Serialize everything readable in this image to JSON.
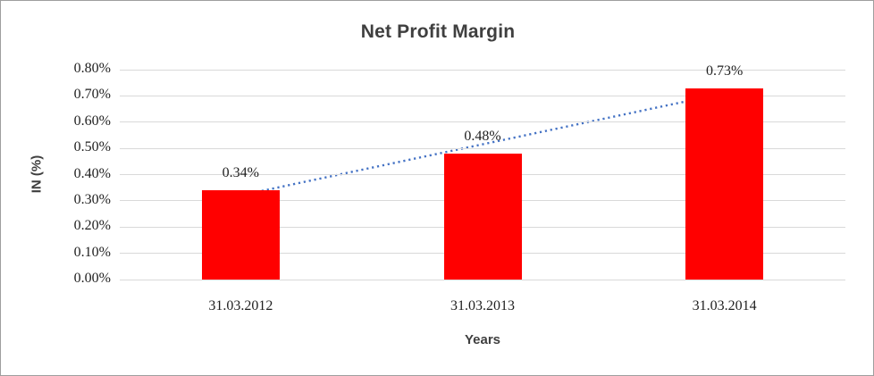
{
  "chart_data": {
    "type": "bar",
    "title": "Net Profit Margin",
    "xlabel": "Years",
    "ylabel": "IN (%)",
    "categories": [
      "31.03.2012",
      "31.03.2013",
      "31.03.2014"
    ],
    "values": [
      0.34,
      0.48,
      0.73
    ],
    "data_labels": [
      "0.34%",
      "0.48%",
      "0.73%"
    ],
    "ylim": [
      0,
      0.8
    ],
    "ytick_interval": 0.1,
    "yticks": [
      {
        "value": 0.0,
        "label": "0.00%"
      },
      {
        "value": 0.1,
        "label": "0.10%"
      },
      {
        "value": 0.2,
        "label": "0.20%"
      },
      {
        "value": 0.3,
        "label": "0.30%"
      },
      {
        "value": 0.4,
        "label": "0.40%"
      },
      {
        "value": 0.5,
        "label": "0.50%"
      },
      {
        "value": 0.6,
        "label": "0.60%"
      },
      {
        "value": 0.7,
        "label": "0.70%"
      },
      {
        "value": 0.8,
        "label": "0.80%"
      }
    ],
    "grid": true,
    "legend": "none",
    "bar_color": "#ff0000",
    "trendline": {
      "type": "linear",
      "style": "dotted",
      "color": "#4472c4",
      "start_value": 0.321,
      "end_value": 0.71
    }
  }
}
